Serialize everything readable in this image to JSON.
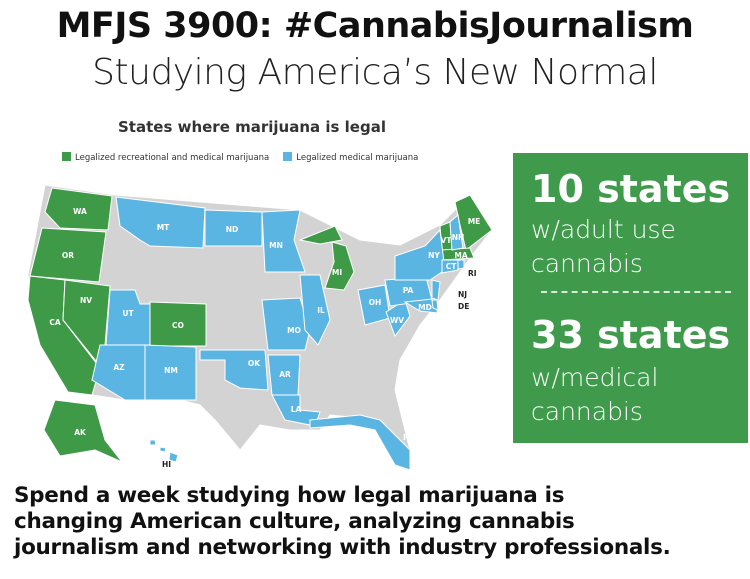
{
  "header": {
    "title": "MFJS 3900: #CannabisJournalism",
    "subtitle": "Studying America’s New Normal"
  },
  "map": {
    "title": "States where marijuana is legal",
    "legend": [
      {
        "label": "Legalized recreational and medical marijuana",
        "color": "#3e9a47"
      },
      {
        "label": "Legalized medical marijuana",
        "color": "#5bb5e2"
      }
    ],
    "other_color": "#d3d3d3",
    "recreational_states": [
      "WA",
      "OR",
      "CA",
      "NV",
      "CO",
      "MI",
      "VT",
      "ME",
      "MA",
      "AK"
    ],
    "medical_states": [
      "MT",
      "ND",
      "MN",
      "UT",
      "AZ",
      "NM",
      "OK",
      "AR",
      "LA",
      "MO",
      "IL",
      "OH",
      "WV",
      "PA",
      "NY",
      "MD",
      "NH",
      "CT",
      "RI",
      "NJ",
      "DE",
      "FL",
      "HI"
    ]
  },
  "stats": {
    "adult_count": "10 states",
    "adult_line1": "w/adult use",
    "adult_line2": "cannabis",
    "medical_count": "33 states",
    "medical_line1": "w/medical",
    "medical_line2": "cannabis"
  },
  "footer": {
    "line1": "Spend a week studying how legal marijuana is",
    "line2": "changing American culture, analyzing cannabis",
    "line3": "journalism and networking with industry professionals."
  }
}
